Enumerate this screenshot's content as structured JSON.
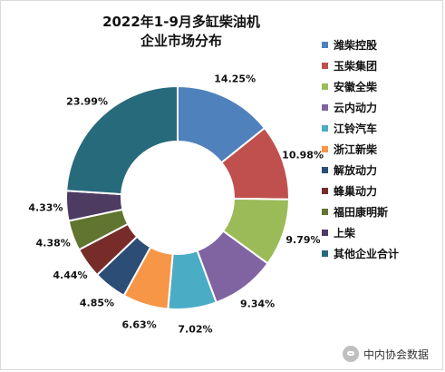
{
  "chart_data": {
    "type": "pie",
    "title_lines": [
      "2022年1-9月多缸柴油机",
      "企业市场分布"
    ],
    "categories": [
      "潍柴控股",
      "玉柴集团",
      "安徽全柴",
      "云内动力",
      "江铃汽车",
      "浙江新柴",
      "解放动力",
      "蜂巢动力",
      "福田康明斯",
      "上柴",
      "其他企业合计"
    ],
    "values": [
      14.25,
      10.98,
      9.79,
      9.34,
      7.02,
      6.63,
      4.85,
      4.44,
      4.38,
      4.33,
      23.99
    ],
    "value_labels": [
      "14.25%",
      "10.98%",
      "9.79%",
      "9.34%",
      "7.02%",
      "6.63%",
      "4.85%",
      "4.44%",
      "4.38%",
      "4.33%",
      "23.99%"
    ],
    "colors": [
      "#4f81bd",
      "#c0504d",
      "#9bbb59",
      "#8064a2",
      "#4bacc6",
      "#f79646",
      "#2c4d75",
      "#772c2a",
      "#5f7530",
      "#4d3b62",
      "#276a7c"
    ],
    "donut": true,
    "legend_position": "right"
  },
  "watermark": {
    "icon": "wechat-icon",
    "text": "中内协会数据"
  }
}
